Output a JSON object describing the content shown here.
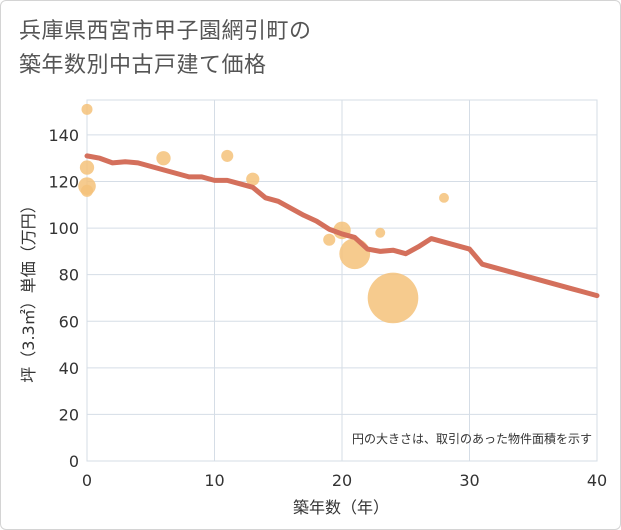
{
  "title_line1": "兵庫県西宮市甲子園網引町の",
  "title_line2": "築年数別中古戸建て価格",
  "chart_data": {
    "type": "scatter",
    "xlabel": "築年数（年）",
    "ylabel": "坪（3.3㎡）単価（万円）",
    "xlim": [
      0,
      40
    ],
    "ylim": [
      0,
      155
    ],
    "xticks": [
      0,
      10,
      20,
      30,
      40
    ],
    "yticks": [
      0,
      20,
      40,
      60,
      80,
      100,
      120,
      140
    ],
    "grid": true,
    "note": "円の大きさは、取引のあった物件面積を示す",
    "colors": {
      "bubble": "#f5c27a",
      "line": "#d4705c",
      "grid": "#d5dde6"
    },
    "points": [
      {
        "x": 0,
        "y": 151,
        "size": 1
      },
      {
        "x": 0,
        "y": 126,
        "size": 1.3
      },
      {
        "x": 0,
        "y": 118,
        "size": 1.6
      },
      {
        "x": 0,
        "y": 116,
        "size": 1.1
      },
      {
        "x": 6,
        "y": 130,
        "size": 1.3
      },
      {
        "x": 11,
        "y": 131,
        "size": 1.1
      },
      {
        "x": 13,
        "y": 121,
        "size": 1.2
      },
      {
        "x": 19,
        "y": 95,
        "size": 1.1
      },
      {
        "x": 20,
        "y": 99,
        "size": 1.6
      },
      {
        "x": 21,
        "y": 89,
        "size": 2.8
      },
      {
        "x": 23,
        "y": 98,
        "size": 0.9
      },
      {
        "x": 24,
        "y": 70,
        "size": 4.6
      },
      {
        "x": 28,
        "y": 113,
        "size": 0.9
      }
    ],
    "trend": {
      "x": [
        0,
        1,
        2,
        3,
        4,
        5,
        6,
        7,
        8,
        9,
        10,
        11,
        12,
        13,
        14,
        15,
        16,
        17,
        18,
        19,
        20,
        21,
        22,
        23,
        24,
        25,
        26,
        27,
        28,
        29,
        30,
        31,
        32,
        33,
        34,
        35,
        36,
        37,
        38,
        39,
        40
      ],
      "y": [
        131,
        130,
        128,
        128.5,
        128,
        126.5,
        125,
        123.5,
        122,
        122,
        120.5,
        120.5,
        119,
        117.5,
        113,
        111.5,
        108.5,
        105.5,
        103,
        99.5,
        97.5,
        96,
        91,
        90,
        90.5,
        89,
        92,
        95.5,
        94,
        92.5,
        91,
        84.5,
        83,
        81.5,
        80,
        78.5,
        77,
        75.5,
        74,
        72.5,
        71
      ]
    }
  }
}
